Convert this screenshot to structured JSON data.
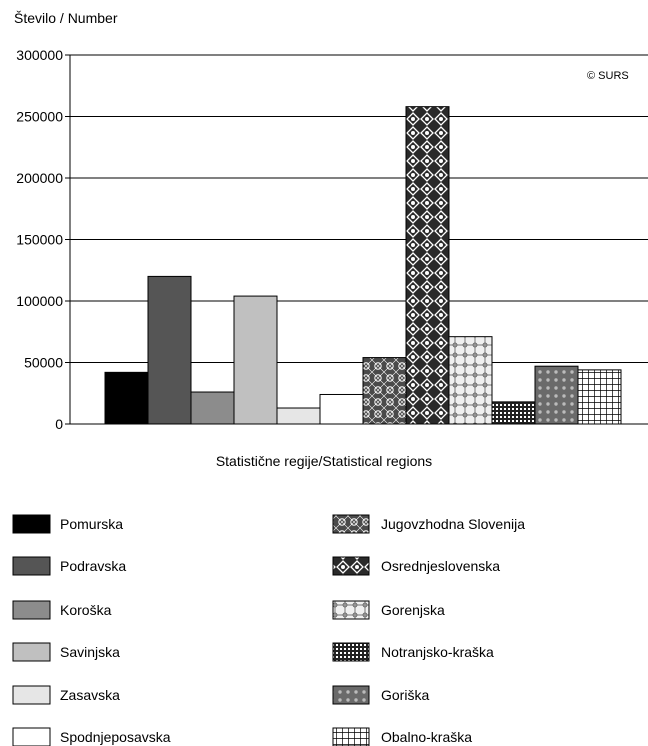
{
  "chart_data": {
    "type": "bar",
    "ylabel": "Število / Number",
    "xlabel": "Statistične regije/Statistical regions",
    "annotation": "© SURS",
    "ylim": [
      0,
      300000
    ],
    "yticks": [
      0,
      50000,
      100000,
      150000,
      200000,
      250000,
      300000
    ],
    "grid": true,
    "legend_position": "bottom",
    "categories": [
      "Pomurska",
      "Podravska",
      "Koroška",
      "Savinjska",
      "Zasavska",
      "Spodnjeposavska",
      "Jugovzhodna Slovenija",
      "Osrednjeslovenska",
      "Gorenjska",
      "Notranjsko-kraška",
      "Goriška",
      "Obalno-kraška"
    ],
    "values": [
      42000,
      120000,
      26000,
      104000,
      13000,
      24000,
      54000,
      258000,
      71000,
      18000,
      47000,
      44000
    ],
    "colors": [
      "#000000",
      "#555555",
      "#8c8c8c",
      "#c0c0c0",
      "#e6e6e6",
      "#ffffff",
      "#4a4a4a",
      "#2a2a2a",
      "#f0f0f0",
      "#303030",
      "#6a6a6a",
      "#ffffff"
    ]
  }
}
